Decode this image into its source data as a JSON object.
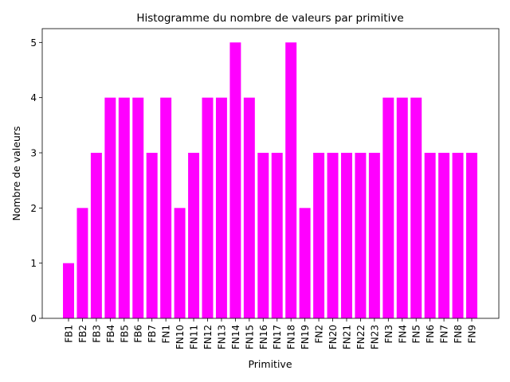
{
  "chart_data": {
    "type": "bar",
    "title": "Histogramme du nombre de valeurs par primitive",
    "xlabel": "Primitive",
    "ylabel": "Nombre de valeurs",
    "categories": [
      "FB1",
      "FB2",
      "FB3",
      "FB4",
      "FB5",
      "FB6",
      "FB7",
      "FN1",
      "FN10",
      "FN11",
      "FN12",
      "FN13",
      "FN14",
      "FN15",
      "FN16",
      "FN17",
      "FN18",
      "FN19",
      "FN2",
      "FN20",
      "FN21",
      "FN22",
      "FN23",
      "FN3",
      "FN4",
      "FN5",
      "FN6",
      "FN7",
      "FN8",
      "FN9"
    ],
    "values": [
      1,
      2,
      3,
      4,
      4,
      4,
      3,
      4,
      2,
      3,
      4,
      4,
      5,
      4,
      3,
      3,
      5,
      2,
      3,
      3,
      3,
      3,
      3,
      4,
      4,
      4,
      3,
      3,
      3,
      3
    ],
    "ylim": [
      0,
      5.25
    ],
    "yticks": [
      0,
      1,
      2,
      3,
      4,
      5
    ],
    "bar_color": "#ff00ff",
    "grid": false
  }
}
